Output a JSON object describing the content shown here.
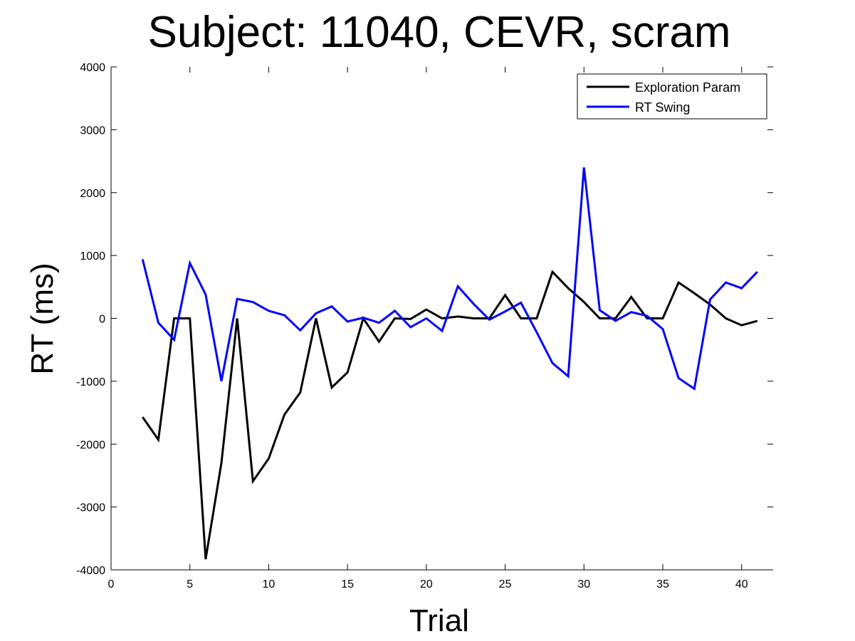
{
  "chart_data": {
    "type": "line",
    "title": "Subject: 11040, CEVR, scram",
    "xlabel": "Trial",
    "ylabel": "RT (ms)",
    "xlim": [
      0,
      42
    ],
    "ylim": [
      -4000,
      4000
    ],
    "xticks": [
      0,
      5,
      10,
      15,
      20,
      25,
      30,
      35,
      40
    ],
    "yticks": [
      4000,
      3000,
      2000,
      1000,
      0,
      -1000,
      -2000,
      -3000,
      -4000
    ],
    "grid": false,
    "legend_placement": "top-right",
    "x": [
      2,
      3,
      4,
      5,
      6,
      7,
      8,
      9,
      10,
      11,
      12,
      13,
      14,
      15,
      16,
      17,
      18,
      19,
      20,
      21,
      22,
      23,
      24,
      25,
      26,
      27,
      28,
      29,
      30,
      31,
      32,
      33,
      34,
      35,
      36,
      37,
      38,
      39,
      40,
      41
    ],
    "series": [
      {
        "name": "Exploration Param",
        "color": "#000000",
        "values": [
          -1570,
          -1930,
          0,
          0,
          -3830,
          -2300,
          0,
          -2590,
          -2230,
          -1530,
          -1180,
          0,
          -1100,
          -860,
          0,
          -370,
          0,
          -10,
          140,
          0,
          30,
          0,
          0,
          370,
          0,
          0,
          740,
          480,
          260,
          0,
          0,
          340,
          0,
          0,
          570,
          400,
          220,
          0,
          -110,
          -40
        ]
      },
      {
        "name": "RT Swing",
        "color": "#0000ff",
        "values": [
          940,
          -70,
          -340,
          880,
          380,
          -1000,
          310,
          260,
          120,
          50,
          -190,
          80,
          190,
          -50,
          10,
          -70,
          120,
          -140,
          0,
          -200,
          510,
          230,
          -20,
          110,
          250,
          -220,
          -710,
          -920,
          2400,
          130,
          -40,
          100,
          40,
          -170,
          -950,
          -1120,
          300,
          570,
          480,
          740
        ]
      }
    ]
  }
}
